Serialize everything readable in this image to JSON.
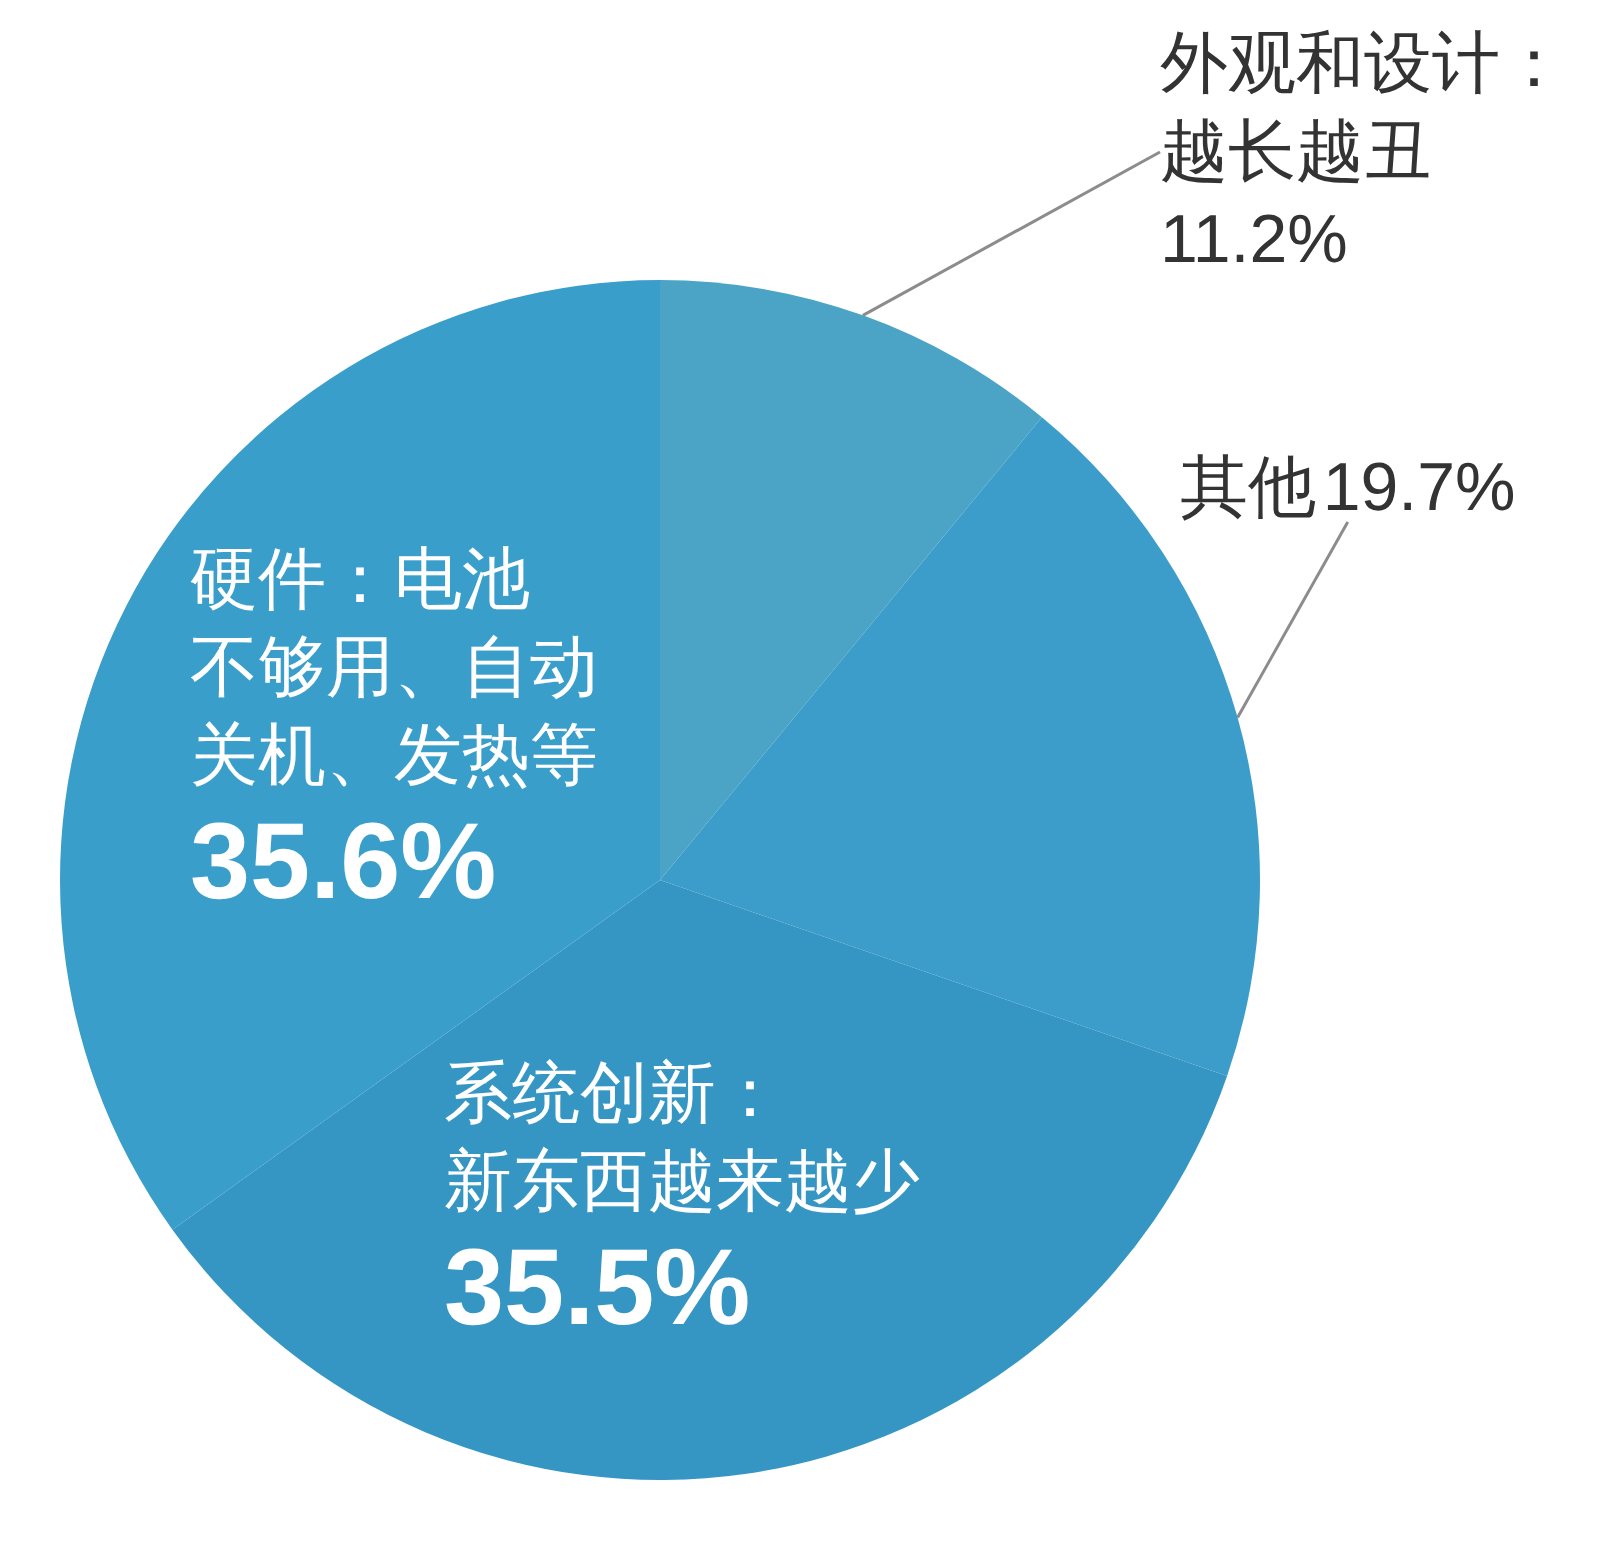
{
  "chart_data": {
    "type": "pie",
    "categories": [
      "外观和设计：越长越丑",
      "其他",
      "系统创新：新东西越来越少",
      "硬件：电池不够用、自动关机、发热等"
    ],
    "values": [
      11.2,
      19.7,
      35.5,
      35.6
    ],
    "value_labels": [
      "11.2%",
      "19.7%",
      "35.5%",
      "35.6%"
    ],
    "colors": [
      "#4ba3c6",
      "#3d9dca",
      "#3596c3",
      "#3a9ecb"
    ]
  }
}
